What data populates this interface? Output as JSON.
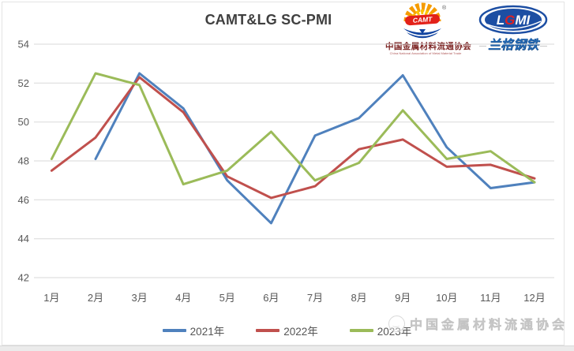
{
  "header": {
    "title": "CAMT&LG SC-PMI",
    "camt_logo": {
      "acronym": "CAMT",
      "registered_mark": "®",
      "name_cn": "中国金属材料流通协会",
      "name_en": "China National Association of Metal Material Trade"
    },
    "lgmi_logo": {
      "acronym": "LGMI",
      "name_cn": "兰格钢铁"
    }
  },
  "chart_data": {
    "type": "line",
    "title": "CAMT&LG SC-PMI",
    "categories": [
      "1月",
      "2月",
      "3月",
      "4月",
      "5月",
      "6月",
      "7月",
      "8月",
      "9月",
      "10月",
      "11月",
      "12月"
    ],
    "series": [
      {
        "name": "2021年",
        "color": "#4F81BD",
        "values": [
          null,
          48.1,
          52.5,
          50.7,
          47.0,
          44.8,
          49.3,
          50.2,
          52.4,
          48.7,
          46.6,
          46.9
        ]
      },
      {
        "name": "2022年",
        "color": "#C0504D",
        "values": [
          47.5,
          49.2,
          52.3,
          50.5,
          47.2,
          46.1,
          46.7,
          48.6,
          49.1,
          47.7,
          47.8,
          47.1
        ]
      },
      {
        "name": "2023年",
        "color": "#9BBB59",
        "values": [
          48.1,
          52.5,
          51.9,
          46.8,
          47.5,
          49.5,
          47.0,
          47.9,
          50.6,
          48.1,
          48.5,
          46.9
        ]
      }
    ],
    "ylim": [
      42,
      54
    ],
    "yticks": [
      54,
      52,
      50,
      48,
      46,
      44,
      42
    ],
    "xlabel": "",
    "ylabel": "",
    "grid": true,
    "legend_position": "bottom",
    "gridline_color": "#d9d9d9",
    "tick_color": "#595959"
  },
  "watermark": {
    "text": "中国金属材料流通协会"
  }
}
